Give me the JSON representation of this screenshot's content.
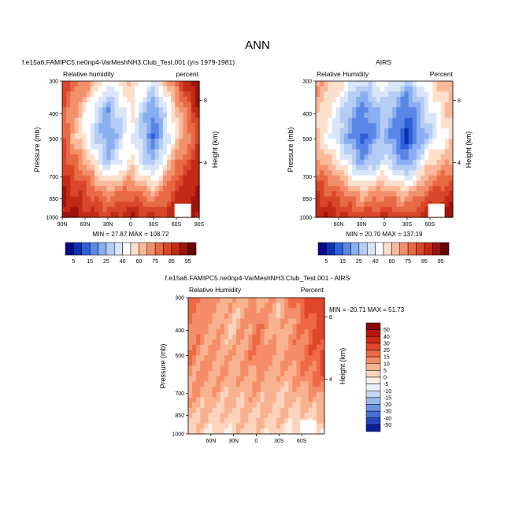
{
  "figure": {
    "title": "ANN"
  },
  "panels": [
    {
      "id": "model",
      "title": "f.e15a6.FAMIPC5.ne0np4-VarMeshNH3.Club_Test.001 (yrs 1979-1981)",
      "left_label": "Relative humidity",
      "right_label": "percent",
      "ylabel": "Pressure (mb)",
      "y2label": "Height (km)",
      "stats": "MIN = 27.87  MAX = 108.72",
      "xticks": [
        "90N",
        "60N",
        "30N",
        "0",
        "30S",
        "60S",
        "90S"
      ],
      "yticks": [
        "300",
        "400",
        "500",
        "700",
        "850",
        "1000"
      ],
      "y2ticks": [
        "8",
        "4"
      ]
    },
    {
      "id": "obs",
      "title": "AIRS",
      "left_label": "Relative Humidity",
      "right_label": "Percent",
      "ylabel": "Pressure (mb)",
      "y2label": "Height (km)",
      "stats": "MIN = 20.70  MAX = 137.19",
      "xticks": [
        "60N",
        "30N",
        "0",
        "30S",
        "60S"
      ],
      "yticks": [
        "300",
        "400",
        "500",
        "700",
        "850",
        "1000"
      ],
      "y2ticks": [
        "8",
        "4"
      ]
    },
    {
      "id": "diff",
      "title": "f.e15a6.FAMIPC5.ne0np4-VarMeshNH3.Club_Test.001 - AIRS",
      "left_label": "Relative Humidity",
      "right_label": "Percent",
      "ylabel": "Pressure (mb)",
      "y2label": "Height (km)",
      "stats": "MIN = -20.71  MAX = 51.73",
      "xticks": [
        "60N",
        "30N",
        "0",
        "30S",
        "60S"
      ],
      "yticks": [
        "300",
        "400",
        "500",
        "700",
        "850",
        "1000"
      ],
      "y2ticks": [
        "8",
        "4"
      ]
    }
  ],
  "colorbar_abs": {
    "labels": [
      "5",
      "15",
      "25",
      "40",
      "60",
      "75",
      "85",
      "95"
    ],
    "colors": [
      "#08088a",
      "#0d2fb0",
      "#2e5fd9",
      "#5a86e8",
      "#8aaef0",
      "#b5cdf5",
      "#d9e6fa",
      "#ffffff",
      "#fde0cc",
      "#f9b99a",
      "#f3906c",
      "#e86a45",
      "#d9472a",
      "#c22a16",
      "#9e130c",
      "#6b0505"
    ]
  },
  "colorbar_diff": {
    "labels": [
      "50",
      "40",
      "30",
      "20",
      "15",
      "10",
      "5",
      "0",
      "-5",
      "-10",
      "-15",
      "-20",
      "-30",
      "-40",
      "-50"
    ],
    "colors": [
      "#8a0a0a",
      "#b0170e",
      "#cd2b16",
      "#e0462a",
      "#ee6a45",
      "#f58e68",
      "#f9b290",
      "#fcd3bc",
      "#fef0e6",
      "#e8f0fb",
      "#c5d6f4",
      "#9cb8ee",
      "#6f94e4",
      "#466fd8",
      "#2548c0",
      "#0c1f96"
    ]
  },
  "chart_data": [
    {
      "type": "heatmap",
      "title": "f.e15a6.FAMIPC5.ne0np4-VarMeshNH3.Club_Test.001 (yrs 1979-1981)",
      "xlabel": "",
      "ylabel": "Pressure (mb)",
      "y2label": "Height (km)",
      "x": [
        90,
        60,
        30,
        0,
        -30,
        -60,
        -90
      ],
      "y": [
        300,
        400,
        500,
        700,
        850,
        1000
      ],
      "z": [
        [
          80,
          70,
          50,
          60,
          45,
          75,
          98
        ],
        [
          78,
          55,
          30,
          55,
          28,
          60,
          88
        ],
        [
          75,
          50,
          28,
          50,
          22,
          55,
          80
        ],
        [
          82,
          65,
          38,
          55,
          35,
          70,
          85
        ],
        [
          88,
          78,
          65,
          72,
          62,
          80,
          90
        ],
        [
          92,
          85,
          82,
          88,
          82,
          86,
          90
        ]
      ],
      "min": 27.87,
      "max": 108.72
    },
    {
      "type": "heatmap",
      "title": "AIRS",
      "xlabel": "",
      "ylabel": "Pressure (mb)",
      "y2label": "Height (km)",
      "x": [
        90,
        60,
        30,
        0,
        -30,
        -60,
        -90
      ],
      "y": [
        300,
        400,
        500,
        700,
        850,
        1000
      ],
      "z": [
        [
          65,
          58,
          40,
          50,
          38,
          55,
          65
        ],
        [
          62,
          45,
          25,
          40,
          22,
          45,
          62
        ],
        [
          60,
          40,
          20,
          35,
          15,
          40,
          58
        ],
        [
          68,
          55,
          30,
          45,
          28,
          58,
          65
        ],
        [
          80,
          72,
          60,
          65,
          58,
          75,
          82
        ],
        [
          90,
          85,
          80,
          85,
          80,
          88,
          92
        ]
      ],
      "min": 20.7,
      "max": 137.19
    },
    {
      "type": "heatmap",
      "title": "f.e15a6.FAMIPC5.ne0np4-VarMeshNH3.Club_Test.001 - AIRS",
      "xlabel": "",
      "ylabel": "Pressure (mb)",
      "y2label": "Height (km)",
      "x": [
        90,
        60,
        30,
        0,
        -30,
        -60,
        -90
      ],
      "y": [
        300,
        400,
        500,
        700,
        850,
        1000
      ],
      "z": [
        [
          18,
          12,
          8,
          10,
          8,
          20,
          30
        ],
        [
          15,
          10,
          5,
          15,
          6,
          15,
          25
        ],
        [
          14,
          10,
          8,
          15,
          8,
          15,
          22
        ],
        [
          12,
          10,
          8,
          10,
          7,
          12,
          18
        ],
        [
          8,
          6,
          5,
          7,
          5,
          5,
          8
        ],
        [
          4,
          0,
          2,
          3,
          2,
          -2,
          0
        ]
      ],
      "min": -20.71,
      "max": 51.73
    }
  ]
}
